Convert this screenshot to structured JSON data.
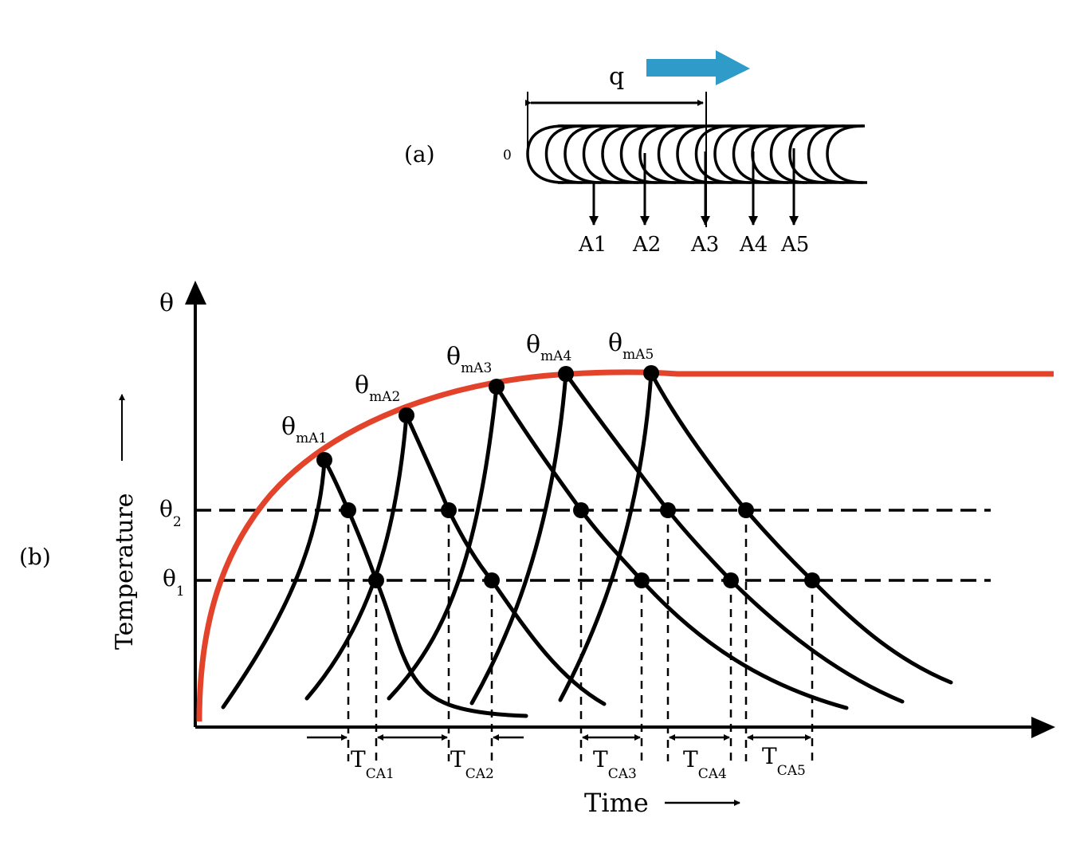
{
  "panel_a": {
    "label": "(a)",
    "origin_label": "0",
    "pitch_label": "q",
    "points": [
      "A1",
      "A2",
      "A3",
      "A4",
      "A5"
    ]
  },
  "panel_b": {
    "label": "(b)",
    "y_axis_symbol": "θ",
    "y_axis_title": "Temperature",
    "x_axis_title": "Time",
    "theta2": {
      "main": "θ",
      "sub": "2"
    },
    "theta1": {
      "main": "θ",
      "sub": "1"
    },
    "peaks": [
      {
        "main": "θ",
        "sub": "mA1"
      },
      {
        "main": "θ",
        "sub": "mA2"
      },
      {
        "main": "θ",
        "sub": "mA3"
      },
      {
        "main": "θ",
        "sub": "mA4"
      },
      {
        "main": "θ",
        "sub": "mA5"
      }
    ],
    "cooling_times": [
      {
        "main": "T",
        "sub": "CA1"
      },
      {
        "main": "T",
        "sub": "CA2"
      },
      {
        "main": "T",
        "sub": "CA3"
      },
      {
        "main": "T",
        "sub": "CA4"
      },
      {
        "main": "T",
        "sub": "CA5"
      }
    ]
  },
  "colors": {
    "envelope": "#e2432a",
    "direction_arrow": "#2f9bc9"
  }
}
